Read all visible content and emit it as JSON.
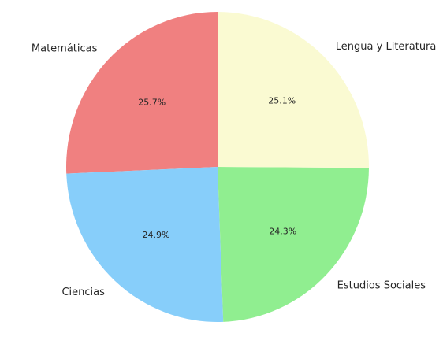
{
  "chart_data": {
    "type": "pie",
    "categories": [
      "Matemáticas",
      "Ciencias",
      "Estudios Sociales",
      "Lengua y Literatura"
    ],
    "values": [
      25.7,
      24.9,
      24.3,
      25.1
    ],
    "value_labels": [
      "25.7%",
      "24.9%",
      "24.3%",
      "25.1%"
    ],
    "colors": [
      "#f08080",
      "#87cefa",
      "#90ee90",
      "#fafad2"
    ]
  }
}
